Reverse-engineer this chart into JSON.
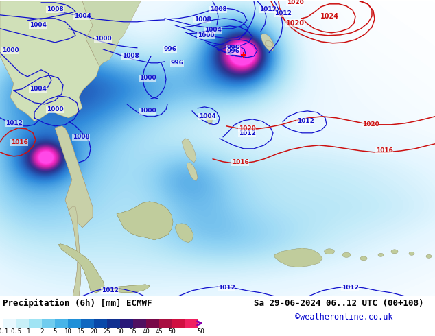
{
  "title_left": "Precipitation (6h) [mm] ECMWF",
  "title_right": "Sa 29-06-2024 06..12 UTC (00+108)",
  "watermark": "©weatheronline.co.uk",
  "fig_width": 6.34,
  "fig_height": 4.9,
  "dpi": 100,
  "colorbar_label_values": [
    0.1,
    0.5,
    1,
    2,
    5,
    10,
    15,
    20,
    25,
    30,
    35,
    40,
    45,
    50
  ],
  "title_fontsize": 9,
  "watermark_color": "#0000cc",
  "contour_blue": "#1010cc",
  "contour_red": "#cc1010",
  "sea_color": "#e8f4fc",
  "land_color_china": "#d8e8c8",
  "land_color_sea_area": "#f0f0ec",
  "precip_light": "#c8eaf8",
  "precip_mid": "#90ccf0",
  "precip_dark": "#4080d0",
  "precip_intense": "#102080",
  "precip_purple": "#c020c0",
  "precip_magenta": "#f020f0",
  "cbar_colors": [
    "#e8f8fe",
    "#c8f0f8",
    "#a0e4f4",
    "#70ccee",
    "#48b4e8",
    "#2090d8",
    "#1068c0",
    "#0848a8",
    "#103090",
    "#281878",
    "#501060",
    "#780848",
    "#a81040",
    "#d01040",
    "#f02060"
  ]
}
